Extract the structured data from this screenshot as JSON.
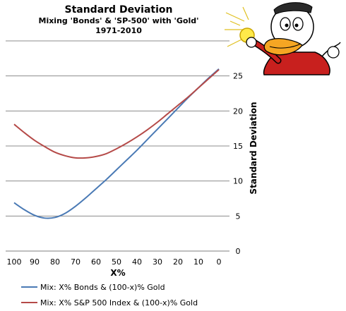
{
  "chart_data": {
    "type": "line",
    "title": "Standard Deviation",
    "subtitle_line1": "Mixing 'Bonds' & 'SP-500' with  'Gold'",
    "subtitle_line2": "1971-2010",
    "xlabel": "X%",
    "ylabel": "Standard Deviation",
    "x_reversed": true,
    "xlim": [
      100,
      0
    ],
    "ylim": [
      0,
      30
    ],
    "x_ticks": [
      "100",
      "90",
      "80",
      "70",
      "60",
      "50",
      "40",
      "30",
      "20",
      "10",
      "0"
    ],
    "y_ticks": [
      "0",
      "5",
      "10",
      "15",
      "20",
      "25"
    ],
    "grid": "horizontal",
    "legend_position": "bottom",
    "series": [
      {
        "name": "Mix: X% Bonds & (100-x)% Gold",
        "color": "#4a7ab5",
        "x": [
          100,
          95,
          90,
          85,
          80,
          75,
          70,
          65,
          60,
          55,
          50,
          45,
          40,
          35,
          30,
          25,
          20,
          15,
          10,
          5,
          0
        ],
        "y": [
          6.9,
          5.9,
          5.1,
          4.7,
          4.8,
          5.4,
          6.4,
          7.6,
          8.9,
          10.2,
          11.6,
          13.0,
          14.4,
          15.9,
          17.4,
          18.9,
          20.4,
          21.9,
          23.3,
          24.7,
          26.0
        ]
      },
      {
        "name": "Mix: X% S&P 500 Index & (100-x)% Gold",
        "color": "#b54a48",
        "x": [
          100,
          95,
          90,
          85,
          80,
          75,
          70,
          65,
          60,
          55,
          50,
          45,
          40,
          35,
          30,
          25,
          20,
          15,
          10,
          5,
          0
        ],
        "y": [
          18.1,
          16.9,
          15.8,
          14.9,
          14.1,
          13.6,
          13.3,
          13.3,
          13.5,
          13.9,
          14.6,
          15.4,
          16.3,
          17.3,
          18.4,
          19.6,
          20.8,
          22.0,
          23.3,
          24.6,
          25.9
        ]
      }
    ]
  },
  "mascot": {
    "icon": "cartoon-duck-holding-gold-coin-icon"
  }
}
